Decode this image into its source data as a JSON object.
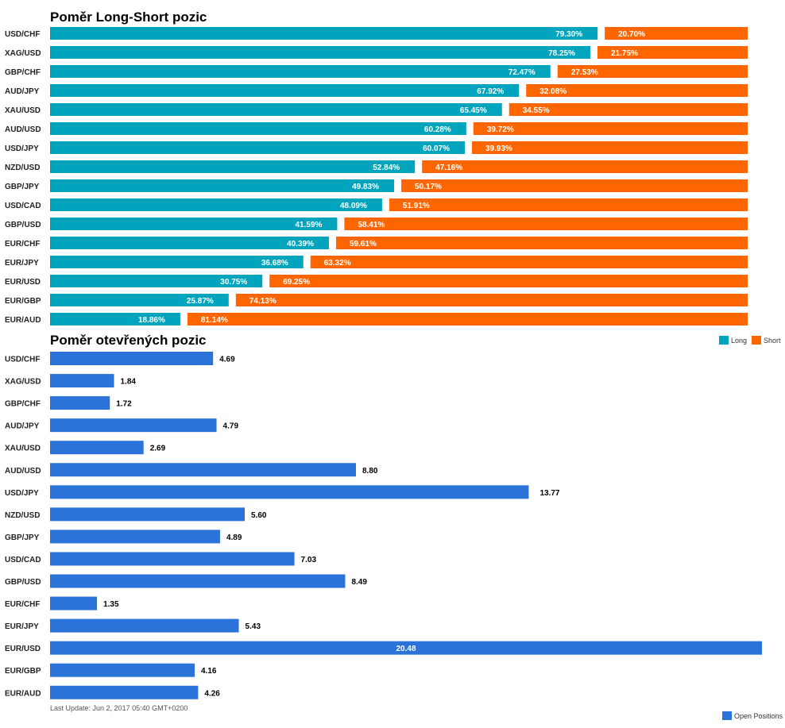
{
  "colors": {
    "long": "#00a5bd",
    "short": "#ff6600",
    "open": "#2b72d9",
    "label_text": "#ffffff",
    "value_text": "#000000",
    "axis_text": "#222222",
    "footer_text": "#555555"
  },
  "legend": {
    "long": "Long",
    "short": "Short",
    "open": "Open Positions"
  },
  "footer": {
    "last_update": "Last Update: Jun 2, 2017 05:40 GMT+0200"
  },
  "chart_data": [
    {
      "type": "bar",
      "orientation": "horizontal",
      "stacked": true,
      "title": "Poměr Long-Short pozic",
      "categories": [
        "USD/CHF",
        "XAG/USD",
        "GBP/CHF",
        "AUD/JPY",
        "XAU/USD",
        "AUD/USD",
        "USD/JPY",
        "NZD/USD",
        "GBP/JPY",
        "USD/CAD",
        "GBP/USD",
        "EUR/CHF",
        "EUR/JPY",
        "EUR/USD",
        "EUR/GBP",
        "EUR/AUD"
      ],
      "series": [
        {
          "name": "Long",
          "values": [
            79.3,
            78.25,
            72.47,
            67.92,
            65.45,
            60.28,
            60.07,
            52.84,
            49.83,
            48.09,
            41.59,
            40.39,
            36.68,
            30.75,
            25.87,
            18.86
          ],
          "labels": [
            "79.30%",
            "78.25%",
            "72.47%",
            "67.92%",
            "65.45%",
            "60.28%",
            "60.07%",
            "52.84%",
            "49.83%",
            "48.09%",
            "41.59%",
            "40.39%",
            "36.68%",
            "30.75%",
            "25.87%",
            "18.86%"
          ]
        },
        {
          "name": "Short",
          "values": [
            20.7,
            21.75,
            27.53,
            32.08,
            34.55,
            39.72,
            39.93,
            47.16,
            50.17,
            51.91,
            58.41,
            59.61,
            63.32,
            69.25,
            74.13,
            81.14
          ],
          "labels": [
            "20.70%",
            "21.75%",
            "27.53%",
            "32.08%",
            "34.55%",
            "39.72%",
            "39.93%",
            "47.16%",
            "50.17%",
            "51.91%",
            "58.41%",
            "59.61%",
            "63.32%",
            "69.25%",
            "74.13%",
            "81.14%"
          ]
        }
      ],
      "xlim": [
        0,
        100
      ],
      "legend_position": "bottom-right",
      "grid": false
    },
    {
      "type": "bar",
      "orientation": "horizontal",
      "title": "Poměr otevřených pozic",
      "categories": [
        "USD/CHF",
        "XAG/USD",
        "GBP/CHF",
        "AUD/JPY",
        "XAU/USD",
        "AUD/USD",
        "USD/JPY",
        "NZD/USD",
        "GBP/JPY",
        "USD/CAD",
        "GBP/USD",
        "EUR/CHF",
        "EUR/JPY",
        "EUR/USD",
        "EUR/GBP",
        "EUR/AUD"
      ],
      "series": [
        {
          "name": "Open Positions",
          "values": [
            4.69,
            1.84,
            1.72,
            4.79,
            2.69,
            8.8,
            13.77,
            5.6,
            4.89,
            7.03,
            8.49,
            1.35,
            5.43,
            20.48,
            4.16,
            4.26
          ],
          "labels": [
            "4.69",
            "1.84",
            "1.72",
            "4.79",
            "2.69",
            "8.80",
            "13.77",
            "5.60",
            "4.89",
            "7.03",
            "8.49",
            "1.35",
            "5.43",
            "20.48",
            "4.16",
            "4.26"
          ]
        }
      ],
      "xlim": [
        0,
        20.48
      ],
      "legend_position": "bottom-right",
      "grid": false
    }
  ]
}
